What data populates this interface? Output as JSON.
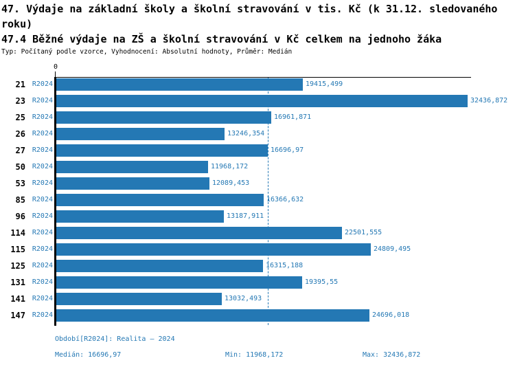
{
  "header": {
    "title": "47. Výdaje na základní školy a školní stravování v tis. Kč (k 31.12. sledovaného roku)",
    "subtitle": "47.4 Běžné výdaje na ZŠ a školní stravování v Kč celkem na jednoho žáka",
    "meta": "Typ: Počítaný podle vzorce, Vyhodnocení: Absolutní hodnoty, Průměr: Medián"
  },
  "chart_data": {
    "type": "bar",
    "orientation": "horizontal",
    "title": "47.4 Běžné výdaje na ZŠ a školní stravování v Kč celkem na jednoho žáka",
    "categories": [
      "21",
      "23",
      "25",
      "26",
      "27",
      "50",
      "53",
      "85",
      "96",
      "114",
      "115",
      "125",
      "131",
      "141",
      "147"
    ],
    "series": [
      {
        "name": "R2024",
        "values": [
          19415.499,
          32436.872,
          16961.871,
          13246.354,
          16696.97,
          11968.172,
          12089.453,
          16366.632,
          13187.911,
          22501.555,
          24809.495,
          16315.188,
          19395.55,
          13032.493,
          24696.018
        ]
      }
    ],
    "value_labels": [
      "19415,499",
      "32436,872",
      "16961,871",
      "13246,354",
      "16696,97",
      "11968,172",
      "12089,453",
      "16366,632",
      "13187,911",
      "22501,555",
      "24809,495",
      "16315,188",
      "19395,55",
      "13032,493",
      "24696,018"
    ],
    "series_label": "R2024",
    "zero_label": "0",
    "xlim": [
      0,
      32436.872
    ],
    "median": 16696.97,
    "grid": false,
    "legend": "none",
    "bar_color": "#2478b4",
    "median_line_color": "#2478b4"
  },
  "footer": {
    "period": "Období[R2024]: Realita – 2024",
    "median": "Medián: 16696,97",
    "min": "Min: 11968,172",
    "max": "Max: 32436,872"
  }
}
